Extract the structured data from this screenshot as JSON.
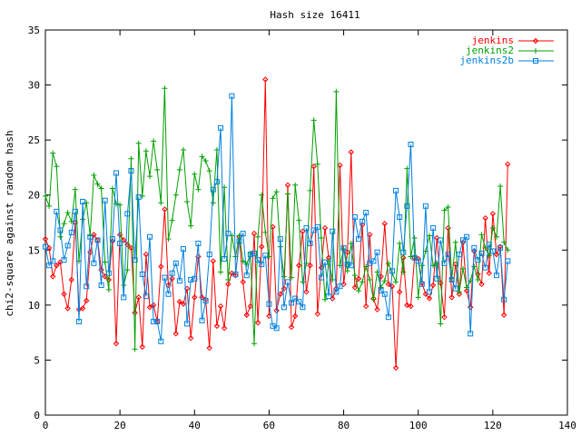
{
  "chart_data": {
    "type": "line",
    "title": "Hash size 16411",
    "xlabel": "",
    "ylabel": "chi2-square against random hash",
    "xlim": [
      0,
      140
    ],
    "ylim": [
      0,
      35
    ],
    "x_ticks": [
      0,
      20,
      40,
      60,
      80,
      100,
      120,
      140
    ],
    "y_ticks": [
      0,
      5,
      10,
      15,
      20,
      25,
      30,
      35
    ],
    "x_tick_labels": [
      "0",
      "20",
      "40",
      "60",
      "80",
      "100",
      "120",
      "140"
    ],
    "y_tick_labels": [
      "0",
      "5",
      "10",
      "15",
      "20",
      "25",
      "30",
      "35"
    ],
    "grid": false,
    "legend_position": "top-right",
    "x": [
      0,
      1,
      2,
      3,
      4,
      5,
      6,
      7,
      8,
      9,
      10,
      11,
      12,
      13,
      14,
      15,
      16,
      17,
      18,
      19,
      20,
      21,
      22,
      23,
      24,
      25,
      26,
      27,
      28,
      29,
      30,
      31,
      32,
      33,
      34,
      35,
      36,
      37,
      38,
      39,
      40,
      41,
      42,
      43,
      44,
      45,
      46,
      47,
      48,
      49,
      50,
      51,
      52,
      53,
      54,
      55,
      56,
      57,
      58,
      59,
      60,
      61,
      62,
      63,
      64,
      65,
      66,
      67,
      68,
      69,
      70,
      71,
      72,
      73,
      74,
      75,
      76,
      77,
      78,
      79,
      80,
      81,
      82,
      83,
      84,
      85,
      86,
      87,
      88,
      89,
      90,
      91,
      92,
      93,
      94,
      95,
      96,
      97,
      98,
      99,
      100,
      101,
      102,
      103,
      104,
      105,
      106,
      107,
      108,
      109,
      110,
      111,
      112,
      113,
      114,
      115,
      116,
      117,
      118,
      119,
      120,
      121,
      122,
      123,
      124
    ],
    "series": [
      {
        "name": "jenkins",
        "color": "#ff0000",
        "marker": "diamond",
        "values": [
          16.0,
          15.2,
          12.6,
          13.6,
          13.9,
          11.0,
          9.7,
          12.3,
          17.5,
          9.6,
          9.7,
          10.4,
          14.8,
          16.4,
          15.9,
          13.2,
          12.6,
          12.3,
          15.8,
          6.5,
          16.4,
          15.9,
          15.5,
          15.2,
          9.3,
          10.7,
          6.2,
          14.6,
          9.8,
          10.0,
          8.5,
          13.5,
          18.7,
          11.8,
          12.4,
          7.4,
          10.3,
          10.1,
          11.5,
          7.0,
          10.7,
          14.4,
          10.7,
          10.5,
          6.1,
          14.0,
          8.1,
          9.9,
          7.9,
          11.9,
          12.9,
          12.7,
          16.2,
          12.1,
          9.1,
          9.9,
          16.5,
          8.4,
          15.3,
          30.5,
          9.0,
          17.1,
          9.5,
          11.0,
          11.5,
          20.9,
          8.0,
          9.0,
          13.6,
          16.7,
          11.2,
          13.6,
          22.6,
          9.2,
          13.4,
          17.0,
          14.3,
          10.6,
          11.5,
          22.7,
          11.9,
          14.8,
          23.9,
          11.6,
          12.4,
          17.3,
          9.9,
          16.4,
          10.6,
          9.6,
          12.6,
          17.4,
          11.9,
          11.7,
          4.3,
          11.2,
          14.3,
          10.0,
          9.9,
          14.3,
          14.2,
          12.0,
          11.0,
          10.6,
          11.8,
          16.1,
          12.0,
          8.9,
          17.0,
          10.7,
          13.7,
          11.0,
          15.7,
          11.3,
          9.8,
          14.9,
          12.8,
          11.9,
          17.9,
          12.9,
          18.3,
          14.6,
          15.3,
          9.1,
          22.8
        ]
      },
      {
        "name": "jenkins2",
        "color": "#00a000",
        "marker": "plus",
        "values": [
          19.9,
          19.0,
          23.8,
          22.6,
          16.2,
          17.4,
          18.4,
          17.6,
          20.5,
          14.0,
          17.8,
          19.3,
          16.3,
          21.8,
          21.0,
          20.6,
          13.9,
          11.4,
          20.6,
          19.2,
          19.1,
          11.8,
          13.2,
          23.3,
          6.0,
          24.7,
          19.9,
          24.0,
          21.7,
          24.9,
          22.3,
          19.3,
          29.7,
          16.0,
          17.7,
          20.0,
          22.3,
          24.1,
          19.4,
          17.2,
          21.9,
          20.5,
          23.5,
          23.1,
          22.2,
          19.3,
          24.1,
          13.0,
          20.7,
          12.3,
          16.3,
          14.4,
          16.3,
          14.0,
          13.7,
          14.7,
          6.5,
          16.2,
          20.0,
          16.6,
          14.4,
          19.7,
          20.3,
          15.3,
          12.6,
          20.1,
          12.5,
          20.9,
          17.7,
          12.1,
          13.8,
          20.4,
          26.8,
          22.8,
          16.1,
          10.5,
          14.0,
          12.3,
          29.4,
          13.6,
          15.1,
          13.1,
          15.6,
          12.7,
          11.3,
          12.1,
          13.5,
          12.3,
          10.5,
          13.0,
          11.6,
          12.2,
          13.8,
          12.9,
          12.1,
          15.6,
          13.0,
          22.4,
          14.4,
          16.1,
          10.7,
          13.6,
          14.9,
          16.3,
          13.6,
          13.8,
          8.3,
          18.6,
          18.9,
          12.4,
          15.7,
          11.2,
          13.3,
          11.6,
          12.2,
          13.5,
          12.3,
          16.4,
          15.2,
          14.5,
          17.0,
          16.2,
          20.8,
          15.7,
          15.0
        ]
      },
      {
        "name": "jenkins2b",
        "color": "#0080e0",
        "marker": "square",
        "values": [
          15.3,
          13.6,
          14.0,
          18.5,
          16.8,
          14.1,
          15.4,
          16.6,
          18.5,
          8.5,
          19.4,
          11.7,
          16.2,
          13.8,
          15.9,
          11.8,
          19.5,
          12.9,
          16.0,
          22.0,
          15.6,
          10.7,
          18.3,
          22.2,
          14.1,
          19.8,
          12.8,
          10.8,
          16.2,
          8.5,
          8.5,
          6.7,
          12.5,
          11.0,
          12.9,
          13.8,
          12.2,
          15.1,
          8.3,
          12.3,
          12.4,
          15.6,
          8.6,
          10.4,
          14.6,
          20.5,
          21.2,
          26.1,
          14.2,
          16.5,
          29.0,
          12.8,
          15.8,
          16.5,
          12.7,
          14.6,
          14.7,
          14.1,
          13.7,
          14.5,
          10.1,
          8.1,
          7.9,
          16.0,
          9.8,
          12.1,
          10.2,
          10.6,
          10.3,
          9.8,
          17.0,
          15.6,
          16.8,
          17.1,
          12.5,
          13.9,
          10.8,
          16.7,
          11.2,
          11.7,
          15.2,
          13.7,
          13.6,
          18.0,
          16.0,
          17.6,
          18.4,
          13.8,
          14.0,
          14.8,
          11.3,
          11.0,
          8.9,
          13.1,
          20.4,
          18.0,
          14.8,
          19.0,
          24.6,
          14.3,
          14.0,
          11.9,
          19.0,
          11.2,
          17.0,
          12.4,
          15.9,
          13.8,
          14.6,
          12.3,
          11.5,
          14.6,
          15.9,
          16.2,
          7.4,
          15.2,
          14.1,
          14.7,
          13.4,
          15.5,
          14.9,
          12.7,
          15.2,
          10.5,
          14.0
        ]
      }
    ]
  }
}
